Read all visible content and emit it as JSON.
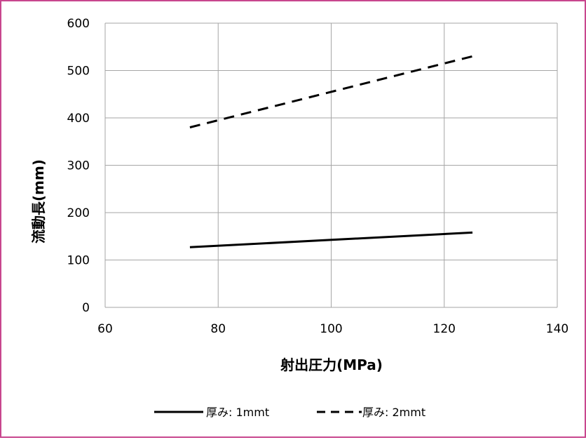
{
  "chart_data": {
    "type": "line",
    "xlabel": "射出圧力(MPa)",
    "ylabel": "流動長(mm)",
    "xlim": [
      60,
      140
    ],
    "ylim": [
      0,
      600
    ],
    "xticks": [
      60,
      80,
      100,
      120,
      140
    ],
    "yticks": [
      0,
      100,
      200,
      300,
      400,
      500,
      600
    ],
    "grid": true,
    "legend_position": "bottom",
    "series": [
      {
        "name": "厚み: 1mmt",
        "style": "solid",
        "x": [
          75,
          125
        ],
        "y": [
          127,
          158
        ]
      },
      {
        "name": "厚み: 2mmt",
        "style": "dashed",
        "x": [
          75,
          125
        ],
        "y": [
          380,
          530
        ]
      }
    ]
  },
  "colors": {
    "border": "#C8468E",
    "grid": "#A6A6A6",
    "line": "#000000"
  }
}
